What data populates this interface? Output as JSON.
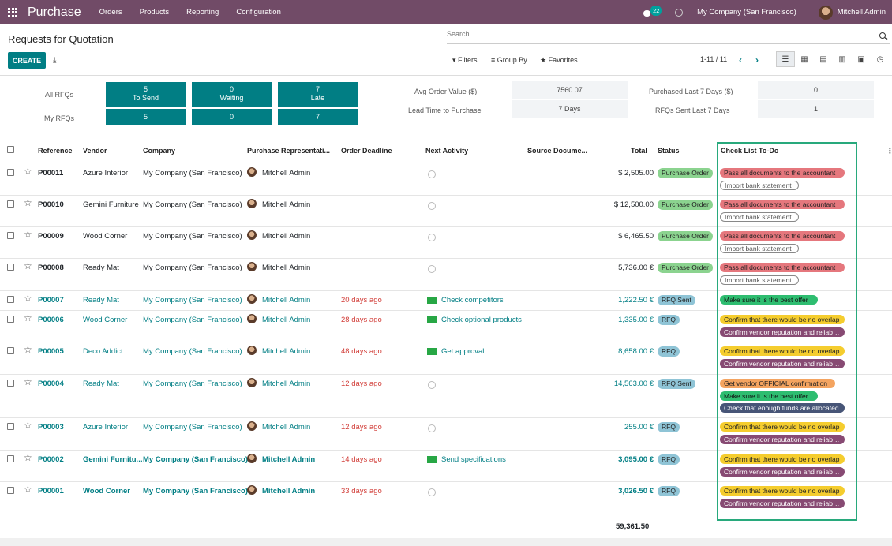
{
  "nav": {
    "app": "Purchase",
    "menus": [
      "Orders",
      "Products",
      "Reporting",
      "Configuration"
    ],
    "chat_count": "22",
    "company": "My Company (San Francisco)",
    "user": "Mitchell Admin"
  },
  "cp": {
    "title": "Requests for Quotation",
    "search_placeholder": "Search...",
    "create": "CREATE",
    "filters": "Filters",
    "group_by": "Group By",
    "favorites": "Favorites",
    "pager": "1-11 / 11"
  },
  "dash": {
    "all_rfqs": "All RFQs",
    "my_rfqs": "My RFQs",
    "tiles": [
      {
        "count": "5",
        "label": "To Send",
        "mine": "5"
      },
      {
        "count": "0",
        "label": "Waiting",
        "mine": "0"
      },
      {
        "count": "7",
        "label": "Late",
        "mine": "7"
      }
    ],
    "kpi": [
      {
        "label": "Avg Order Value ($)",
        "value": "7560.07"
      },
      {
        "label": "Lead Time to Purchase",
        "value": "7  Days"
      },
      {
        "label": "Purchased Last 7 Days ($)",
        "value": "0"
      },
      {
        "label": "RFQs Sent Last 7 Days",
        "value": "1"
      }
    ]
  },
  "columns": [
    "Reference",
    "Vendor",
    "Company",
    "Purchase Representati...",
    "Order Deadline",
    "Next Activity",
    "Source Docume...",
    "Total",
    "Status",
    "Check List To-Do"
  ],
  "rows": [
    {
      "ref": "P00011",
      "vendor": "Azure Interior",
      "company": "My Company (San Francisco)",
      "rep": "Mitchell Admin",
      "deadline": "",
      "activity": "",
      "total": "$ 2,505.00",
      "status": "Purchase Order",
      "tags": [
        {
          "t": "Pass all documents to the accountant",
          "c": "red"
        },
        {
          "t": "Import bank statement",
          "c": "outline"
        }
      ]
    },
    {
      "ref": "P00010",
      "vendor": "Gemini Furniture",
      "company": "My Company (San Francisco)",
      "rep": "Mitchell Admin",
      "deadline": "",
      "activity": "",
      "total": "$ 12,500.00",
      "status": "Purchase Order",
      "tags": [
        {
          "t": "Pass all documents to the accountant",
          "c": "red"
        },
        {
          "t": "Import bank statement",
          "c": "outline"
        }
      ]
    },
    {
      "ref": "P00009",
      "vendor": "Wood Corner",
      "company": "My Company (San Francisco)",
      "rep": "Mitchell Admin",
      "deadline": "",
      "activity": "",
      "total": "$ 6,465.50",
      "status": "Purchase Order",
      "tags": [
        {
          "t": "Pass all documents to the accountant",
          "c": "red"
        },
        {
          "t": "Import bank statement",
          "c": "outline"
        }
      ]
    },
    {
      "ref": "P00008",
      "vendor": "Ready Mat",
      "company": "My Company (San Francisco)",
      "rep": "Mitchell Admin",
      "deadline": "",
      "activity": "",
      "total": "5,736.00 €",
      "status": "Purchase Order",
      "tags": [
        {
          "t": "Pass all documents to the accountant",
          "c": "red"
        },
        {
          "t": "Import bank statement",
          "c": "outline"
        }
      ]
    },
    {
      "ref": "P00007",
      "vendor": "Ready Mat",
      "company": "My Company (San Francisco)",
      "rep": "Mitchell Admin",
      "deadline": "20 days ago",
      "activity": "Check competitors",
      "total": "1,222.50 €",
      "status": "RFQ Sent",
      "tags": [
        {
          "t": "Make sure it is the best offer",
          "c": "green"
        }
      ]
    },
    {
      "ref": "P00006",
      "vendor": "Wood Corner",
      "company": "My Company (San Francisco)",
      "rep": "Mitchell Admin",
      "deadline": "28 days ago",
      "activity": "Check optional products",
      "total": "1,335.00 €",
      "status": "RFQ",
      "tags": [
        {
          "t": "Confirm that there would be no overlap",
          "c": "yellow"
        },
        {
          "t": "Confirm vendor reputation and reliability",
          "c": "purple"
        }
      ]
    },
    {
      "ref": "P00005",
      "vendor": "Deco Addict",
      "company": "My Company (San Francisco)",
      "rep": "Mitchell Admin",
      "deadline": "48 days ago",
      "activity": "Get approval",
      "total": "8,658.00 €",
      "status": "RFQ",
      "tags": [
        {
          "t": "Confirm that there would be no overlap",
          "c": "yellow"
        },
        {
          "t": "Confirm vendor reputation and reliability",
          "c": "purple"
        }
      ]
    },
    {
      "ref": "P00004",
      "vendor": "Ready Mat",
      "company": "My Company (San Francisco)",
      "rep": "Mitchell Admin",
      "deadline": "12 days ago",
      "activity": "",
      "total": "14,563.00 €",
      "status": "RFQ Sent",
      "tags": [
        {
          "t": "Get vendor OFFICIAL confirmation",
          "c": "orange"
        },
        {
          "t": "Make sure it is the best offer",
          "c": "green"
        },
        {
          "t": "Check that enough funds are allocated",
          "c": "navy"
        }
      ]
    },
    {
      "ref": "P00003",
      "vendor": "Azure Interior",
      "company": "My Company (San Francisco)",
      "rep": "Mitchell Admin",
      "deadline": "12 days ago",
      "activity": "",
      "total": "255.00 €",
      "status": "RFQ",
      "tags": [
        {
          "t": "Confirm that there would be no overlap",
          "c": "yellow"
        },
        {
          "t": "Confirm vendor reputation and reliability",
          "c": "purple"
        }
      ]
    },
    {
      "ref": "P00002",
      "vendor": "Gemini Furnitu...",
      "company": "My Company (San Francisco)",
      "rep": "Mitchell Admin",
      "deadline": "14 days ago",
      "activity": "Send specifications",
      "total": "3,095.00 €",
      "status": "RFQ",
      "tags": [
        {
          "t": "Confirm that there would be no overlap",
          "c": "yellow"
        },
        {
          "t": "Confirm vendor reputation and reliability",
          "c": "purple"
        }
      ]
    },
    {
      "ref": "P00001",
      "vendor": "Wood Corner",
      "company": "My Company (San Francisco)",
      "rep": "Mitchell Admin",
      "deadline": "33 days ago",
      "activity": "",
      "total": "3,026.50 €",
      "status": "RFQ",
      "tags": [
        {
          "t": "Confirm that there would be no overlap",
          "c": "yellow"
        },
        {
          "t": "Confirm vendor reputation and reliability",
          "c": "purple"
        }
      ]
    }
  ],
  "grand_total": "59,361.50"
}
